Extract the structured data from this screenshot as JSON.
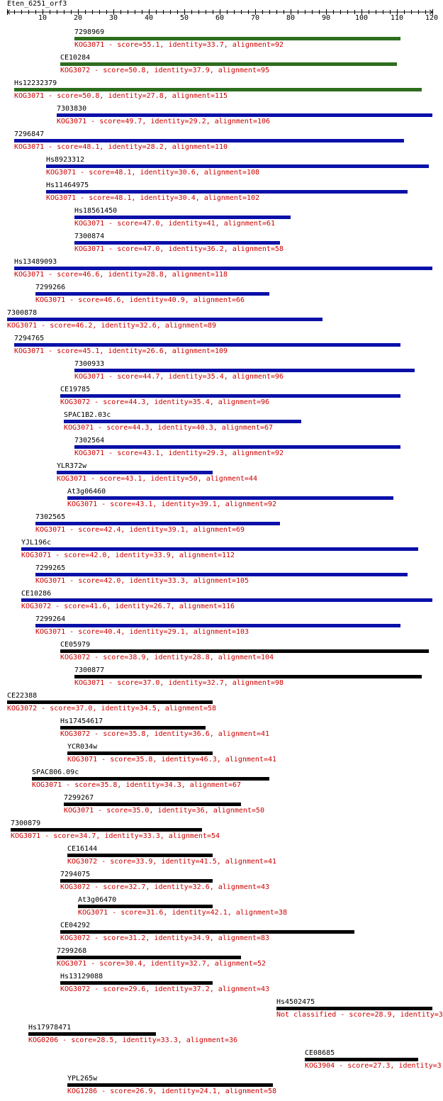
{
  "query": {
    "name": "Eten_6251_orf3",
    "length": 120
  },
  "axis": {
    "ticks": [
      10,
      20,
      30,
      40,
      50,
      60,
      70,
      80,
      90,
      100,
      110,
      120
    ]
  },
  "colors": {
    "green": "#2d6e1e",
    "blue": "#0a10a8",
    "black": "#000000",
    "text_red": "#cc0000"
  },
  "chart_data": {
    "type": "alignment-map",
    "xlim": [
      0,
      120
    ],
    "hits": [
      {
        "name": "7298969",
        "kog": "KOG3071",
        "score": "55.1",
        "identity": "33.7",
        "alignment": "92",
        "start": 19,
        "end": 111,
        "color": "green"
      },
      {
        "name": "CE10284",
        "kog": "KOG3072",
        "score": "50.8",
        "identity": "37.9",
        "alignment": "95",
        "start": 15,
        "end": 110,
        "color": "green"
      },
      {
        "name": "Hs12232379",
        "kog": "KOG3071",
        "score": "50.8",
        "identity": "27.8",
        "alignment": "115",
        "start": 2,
        "end": 117,
        "color": "green"
      },
      {
        "name": "7303830",
        "kog": "KOG3071",
        "score": "49.7",
        "identity": "29.2",
        "alignment": "106",
        "start": 14,
        "end": 120,
        "color": "blue"
      },
      {
        "name": "7296847",
        "kog": "KOG3071",
        "score": "48.1",
        "identity": "28.2",
        "alignment": "110",
        "start": 2,
        "end": 112,
        "color": "blue"
      },
      {
        "name": "Hs8923312",
        "kog": "KOG3071",
        "score": "48.1",
        "identity": "30.6",
        "alignment": "108",
        "start": 11,
        "end": 119,
        "color": "blue"
      },
      {
        "name": "Hs11464975",
        "kog": "KOG3071",
        "score": "48.1",
        "identity": "30.4",
        "alignment": "102",
        "start": 11,
        "end": 113,
        "color": "blue"
      },
      {
        "name": "Hs18561450",
        "kog": "KOG3071",
        "score": "47.0",
        "identity": "41",
        "alignment": "61",
        "start": 19,
        "end": 80,
        "color": "blue"
      },
      {
        "name": "7300874",
        "kog": "KOG3071",
        "score": "47.0",
        "identity": "36.2",
        "alignment": "58",
        "start": 19,
        "end": 77,
        "color": "blue"
      },
      {
        "name": "Hs13489093",
        "kog": "KOG3071",
        "score": "46.6",
        "identity": "28.8",
        "alignment": "118",
        "start": 2,
        "end": 120,
        "color": "blue"
      },
      {
        "name": "7299266",
        "kog": "KOG3071",
        "score": "46.6",
        "identity": "40.9",
        "alignment": "66",
        "start": 8,
        "end": 74,
        "color": "blue"
      },
      {
        "name": "7300878",
        "kog": "KOG3071",
        "score": "46.2",
        "identity": "32.6",
        "alignment": "89",
        "start": 0,
        "end": 89,
        "color": "blue"
      },
      {
        "name": "7294765",
        "kog": "KOG3071",
        "score": "45.1",
        "identity": "26.6",
        "alignment": "109",
        "start": 2,
        "end": 111,
        "color": "blue"
      },
      {
        "name": "7300933",
        "kog": "KOG3071",
        "score": "44.7",
        "identity": "35.4",
        "alignment": "96",
        "start": 19,
        "end": 115,
        "color": "blue"
      },
      {
        "name": "CE19785",
        "kog": "KOG3072",
        "score": "44.3",
        "identity": "35.4",
        "alignment": "96",
        "start": 15,
        "end": 111,
        "color": "blue"
      },
      {
        "name": "SPAC1B2.03c",
        "kog": "KOG3071",
        "score": "44.3",
        "identity": "40.3",
        "alignment": "67",
        "start": 16,
        "end": 83,
        "color": "blue"
      },
      {
        "name": "7302564",
        "kog": "KOG3071",
        "score": "43.1",
        "identity": "29.3",
        "alignment": "92",
        "start": 19,
        "end": 111,
        "color": "blue"
      },
      {
        "name": "YLR372w",
        "kog": "KOG3071",
        "score": "43.1",
        "identity": "50",
        "alignment": "44",
        "start": 14,
        "end": 58,
        "color": "blue"
      },
      {
        "name": "At3g06460",
        "kog": "KOG3071",
        "score": "43.1",
        "identity": "39.1",
        "alignment": "92",
        "start": 17,
        "end": 109,
        "color": "blue"
      },
      {
        "name": "7302565",
        "kog": "KOG3071",
        "score": "42.4",
        "identity": "39.1",
        "alignment": "69",
        "start": 8,
        "end": 77,
        "color": "blue"
      },
      {
        "name": "YJL196c",
        "kog": "KOG3071",
        "score": "42.0",
        "identity": "33.9",
        "alignment": "112",
        "start": 4,
        "end": 116,
        "color": "blue"
      },
      {
        "name": "7299265",
        "kog": "KOG3071",
        "score": "42.0",
        "identity": "33.3",
        "alignment": "105",
        "start": 8,
        "end": 113,
        "color": "blue"
      },
      {
        "name": "CE10286",
        "kog": "KOG3072",
        "score": "41.6",
        "identity": "26.7",
        "alignment": "116",
        "start": 4,
        "end": 120,
        "color": "blue"
      },
      {
        "name": "7299264",
        "kog": "KOG3071",
        "score": "40.4",
        "identity": "29.1",
        "alignment": "103",
        "start": 8,
        "end": 111,
        "color": "blue"
      },
      {
        "name": "CE05979",
        "kog": "KOG3072",
        "score": "38.9",
        "identity": "28.8",
        "alignment": "104",
        "start": 15,
        "end": 119,
        "color": "black"
      },
      {
        "name": "7300877",
        "kog": "KOG3071",
        "score": "37.0",
        "identity": "32.7",
        "alignment": "98",
        "start": 19,
        "end": 117,
        "color": "black"
      },
      {
        "name": "CE22388",
        "kog": "KOG3072",
        "score": "37.0",
        "identity": "34.5",
        "alignment": "58",
        "start": 0,
        "end": 58,
        "color": "black"
      },
      {
        "name": "Hs17454617",
        "kog": "KOG3072",
        "score": "35.8",
        "identity": "36.6",
        "alignment": "41",
        "start": 15,
        "end": 56,
        "color": "black"
      },
      {
        "name": "YCR034w",
        "kog": "KOG3071",
        "score": "35.8",
        "identity": "46.3",
        "alignment": "41",
        "start": 17,
        "end": 58,
        "color": "black"
      },
      {
        "name": "SPAC806.09c",
        "kog": "KOG3071",
        "score": "35.8",
        "identity": "34.3",
        "alignment": "67",
        "start": 7,
        "end": 74,
        "color": "black"
      },
      {
        "name": "7299267",
        "kog": "KOG3071",
        "score": "35.0",
        "identity": "36",
        "alignment": "50",
        "start": 16,
        "end": 66,
        "color": "black"
      },
      {
        "name": "7300879",
        "kog": "KOG3071",
        "score": "34.7",
        "identity": "33.3",
        "alignment": "54",
        "start": 1,
        "end": 55,
        "color": "black"
      },
      {
        "name": "CE16144",
        "kog": "KOG3072",
        "score": "33.9",
        "identity": "41.5",
        "alignment": "41",
        "start": 17,
        "end": 58,
        "color": "black"
      },
      {
        "name": "7294075",
        "kog": "KOG3072",
        "score": "32.7",
        "identity": "32.6",
        "alignment": "43",
        "start": 15,
        "end": 58,
        "color": "black"
      },
      {
        "name": "At3g06470",
        "kog": "KOG3071",
        "score": "31.6",
        "identity": "42.1",
        "alignment": "38",
        "start": 20,
        "end": 58,
        "color": "black"
      },
      {
        "name": "CE04292",
        "kog": "KOG3072",
        "score": "31.2",
        "identity": "34.9",
        "alignment": "83",
        "start": 15,
        "end": 98,
        "color": "black"
      },
      {
        "name": "7299268",
        "kog": "KOG3071",
        "score": "30.4",
        "identity": "32.7",
        "alignment": "52",
        "start": 14,
        "end": 66,
        "color": "black"
      },
      {
        "name": "Hs13129088",
        "kog": "KOG3072",
        "score": "29.6",
        "identity": "37.2",
        "alignment": "43",
        "start": 15,
        "end": 58,
        "color": "black"
      },
      {
        "name": "Hs4502475",
        "kog": "Not classified",
        "score": "28.9",
        "identity": "3",
        "alignment": "",
        "start": 76,
        "end": 120,
        "color": "black"
      },
      {
        "name": "Hs17978471",
        "kog": "KOG0206",
        "score": "28.5",
        "identity": "33.3",
        "alignment": "36",
        "start": 6,
        "end": 42,
        "color": "black"
      },
      {
        "name": "CE08685",
        "kog": "KOG3904",
        "score": "27.3",
        "identity": "3",
        "alignment": "",
        "start": 84,
        "end": 116,
        "color": "black"
      },
      {
        "name": "YPL265w",
        "kog": "KOG1286",
        "score": "26.9",
        "identity": "24.1",
        "alignment": "58",
        "start": 17,
        "end": 75,
        "color": "black"
      }
    ]
  }
}
